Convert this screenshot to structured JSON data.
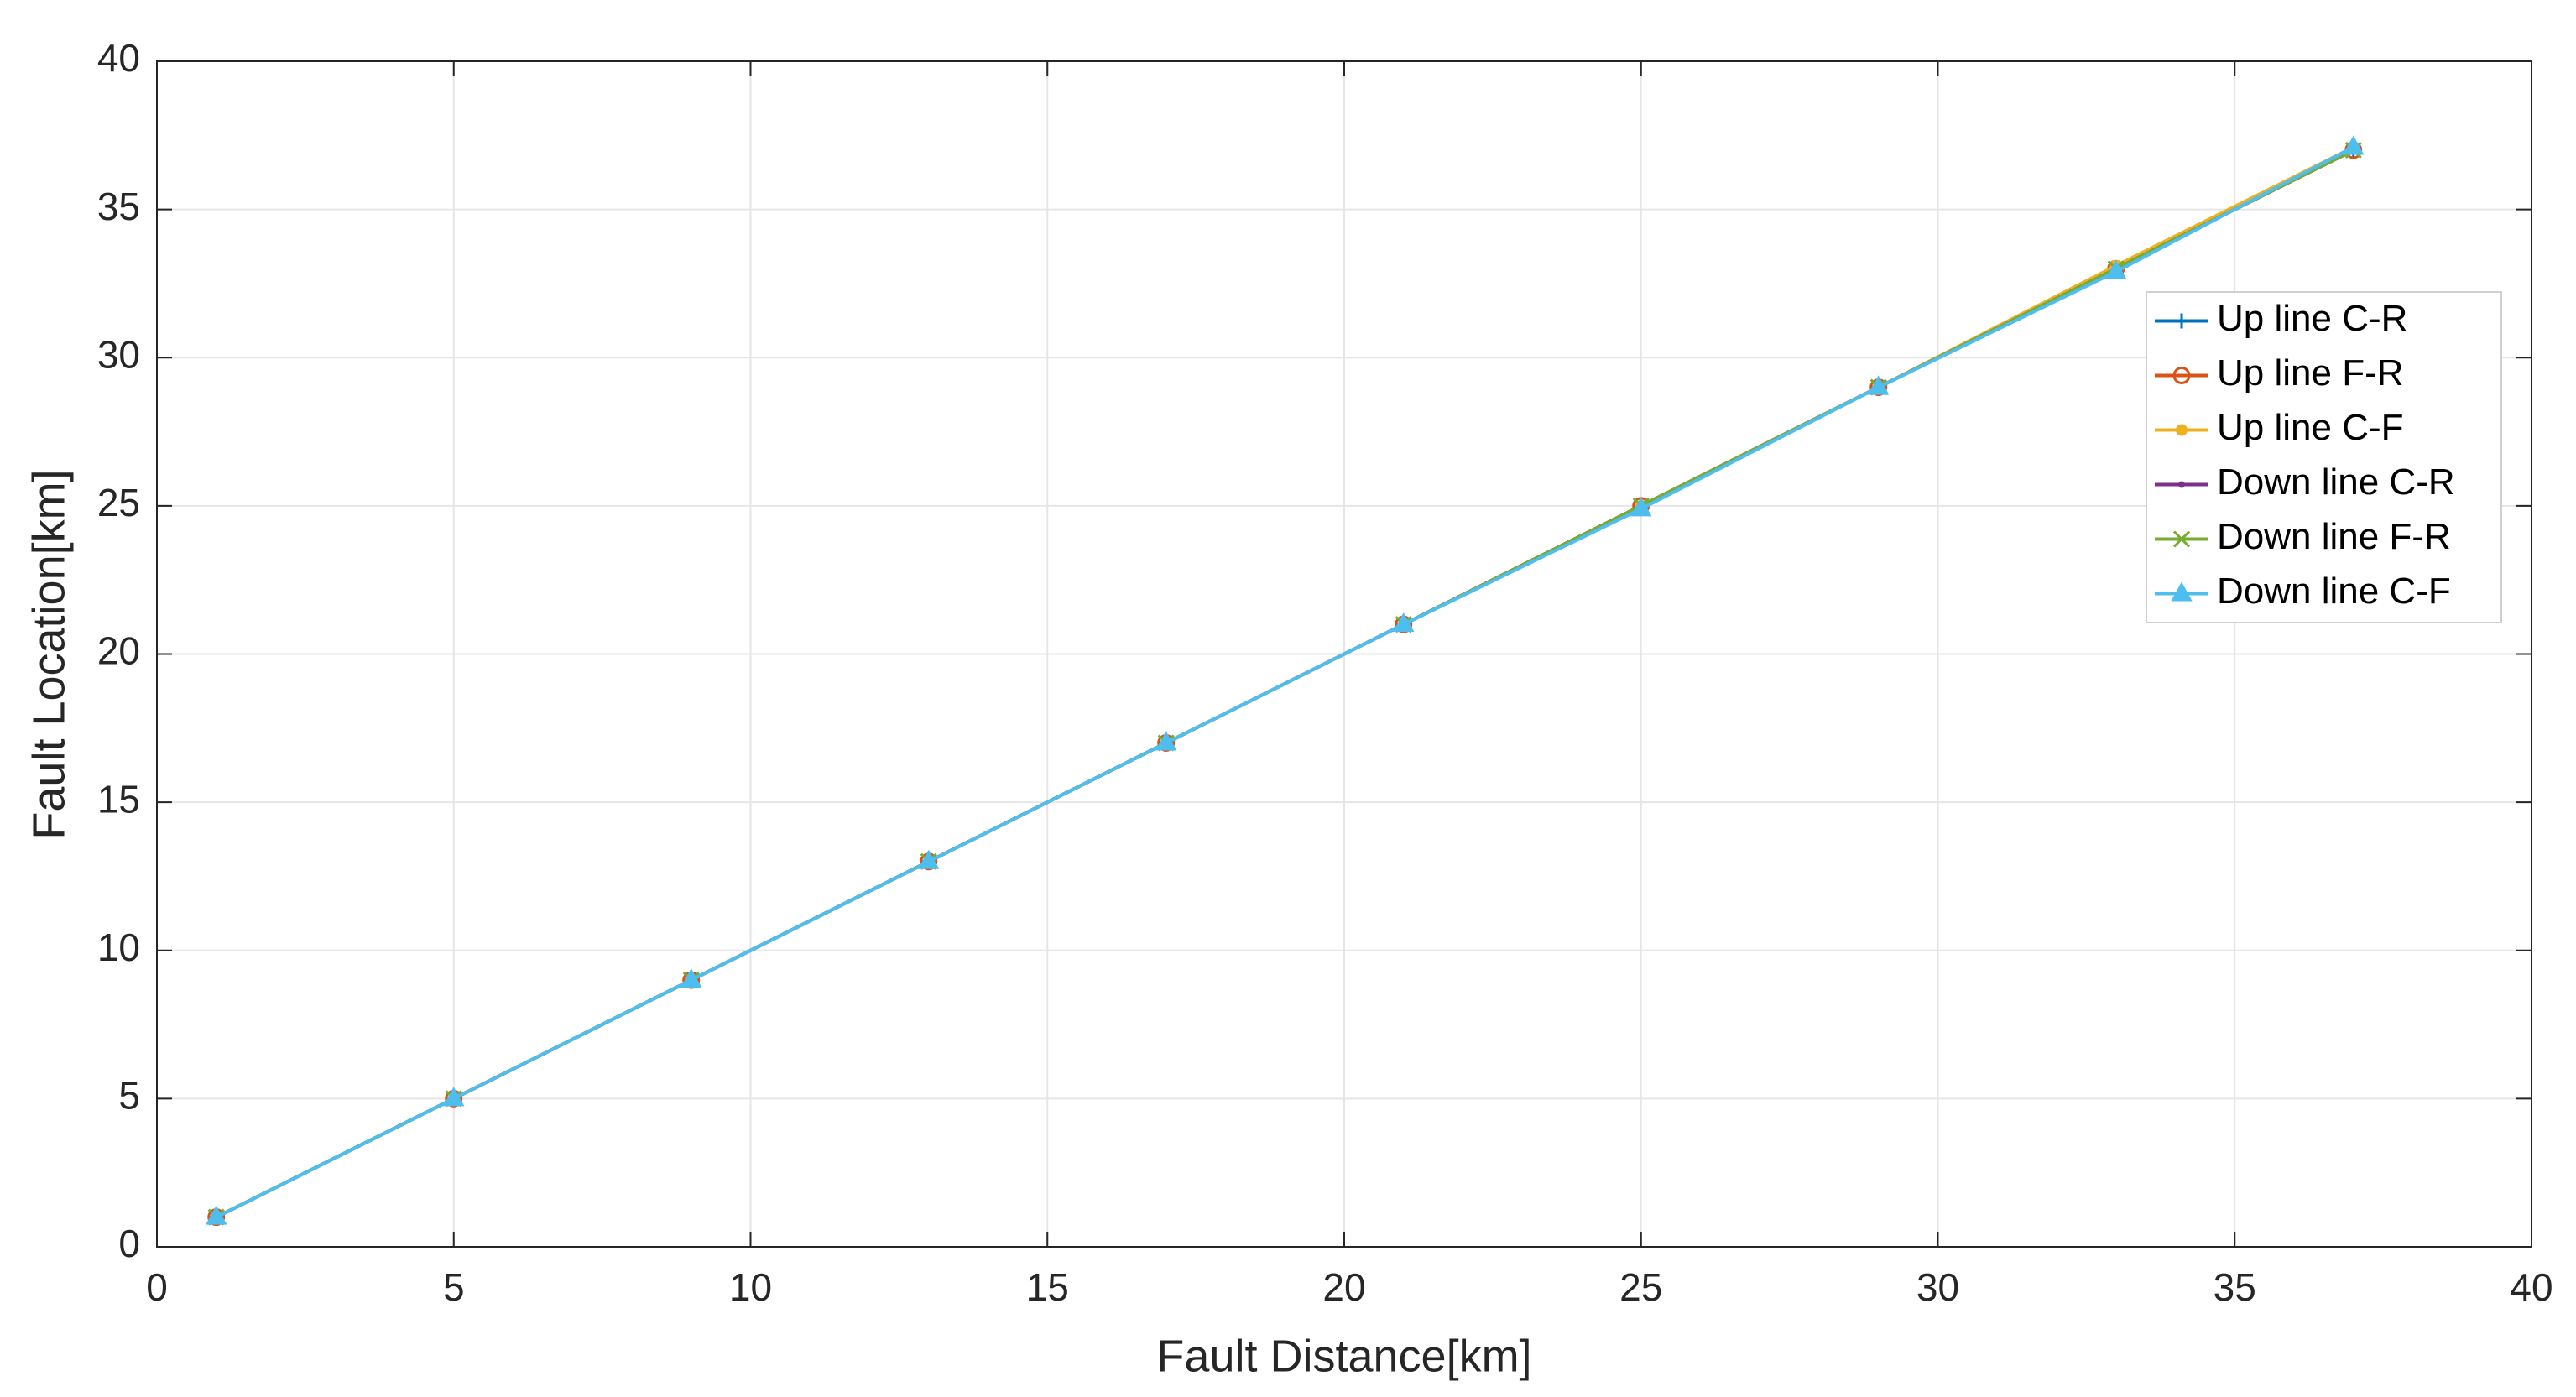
{
  "chart_data": {
    "type": "line",
    "xlabel": "Fault Distance[km]",
    "ylabel": "Fault Location[km]",
    "x": [
      1,
      5,
      9,
      13,
      17,
      21,
      25,
      29,
      33,
      37
    ],
    "series": [
      {
        "name": "Up line C-R",
        "color": "#0072BD",
        "marker": "plus",
        "values": [
          1,
          5,
          9,
          13,
          17,
          21,
          25,
          29,
          33,
          37
        ]
      },
      {
        "name": "Up line F-R",
        "color": "#D95319",
        "marker": "circle",
        "values": [
          1,
          5,
          9,
          13,
          17,
          21,
          25,
          29,
          33,
          37
        ]
      },
      {
        "name": "Up line C-F",
        "color": "#EDB120",
        "marker": "dot",
        "values": [
          1,
          5,
          9,
          13,
          17,
          21,
          25,
          29,
          33.1,
          37.1
        ]
      },
      {
        "name": "Down line C-R",
        "color": "#7E2F8E",
        "marker": "point",
        "values": [
          1,
          5,
          9,
          13,
          17,
          21,
          25,
          29,
          33,
          37
        ]
      },
      {
        "name": "Down line F-R",
        "color": "#77AC30",
        "marker": "x",
        "values": [
          1,
          5,
          9,
          13,
          17,
          21,
          25,
          29,
          33,
          37
        ]
      },
      {
        "name": "Down line C-F",
        "color": "#4DBEEE",
        "marker": "triangle",
        "values": [
          1,
          5,
          9,
          13,
          17,
          21,
          24.9,
          29,
          32.9,
          37.1
        ]
      }
    ],
    "xlim": [
      0,
      40
    ],
    "ylim": [
      0,
      40
    ],
    "xticks": [
      0,
      5,
      10,
      15,
      20,
      25,
      30,
      35,
      40
    ],
    "yticks": [
      0,
      5,
      10,
      15,
      20,
      25,
      30,
      35,
      40
    ],
    "grid": true,
    "legend": "east"
  }
}
